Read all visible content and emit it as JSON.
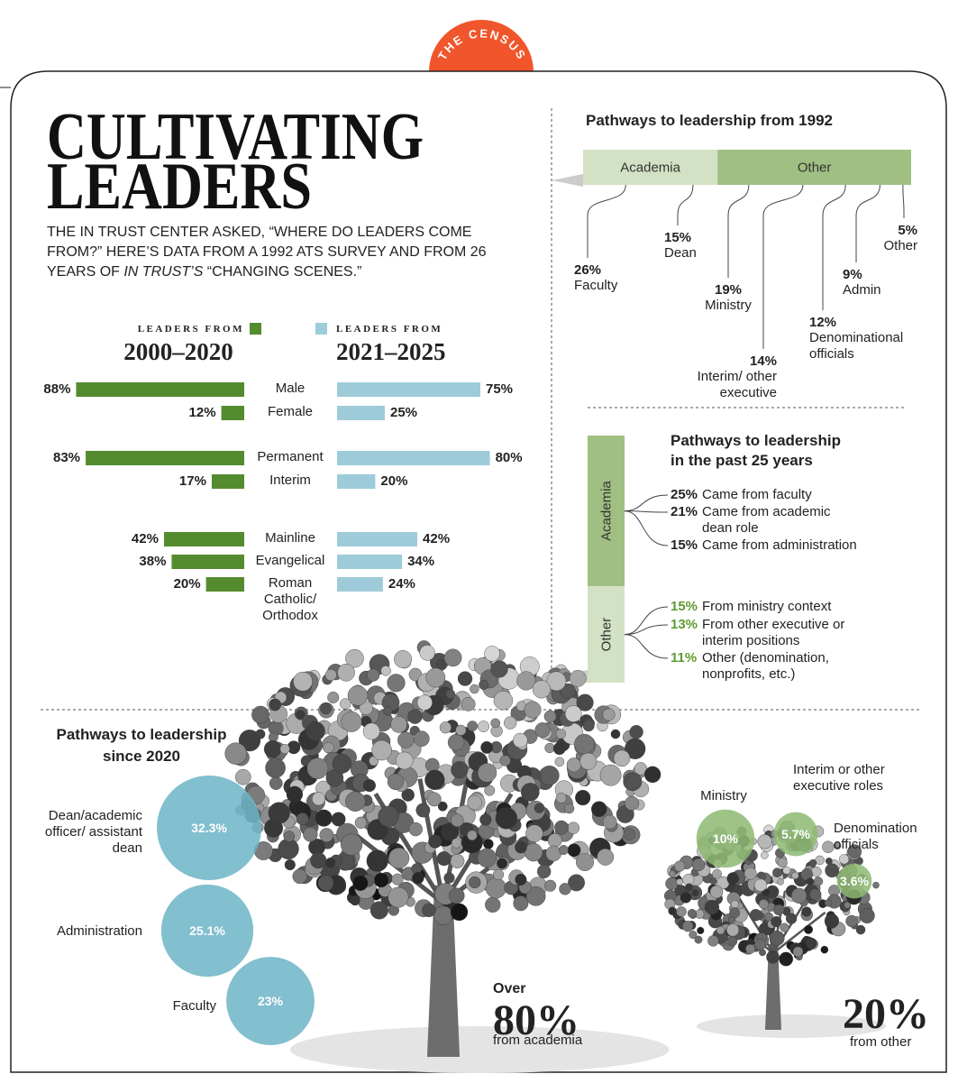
{
  "badge": "THE CENSUS",
  "header": {
    "title": [
      "CULTIVATING",
      "LEADERS"
    ],
    "intro": [
      "THE IN TRUST CENTER ASKED, “WHERE DO LEADERS COME FROM?” HERE’S DATA FROM A 1992 ATS SURVEY AND FROM 26 YEARS OF ",
      "IN TRUST’S",
      " “CHANGING SCENES.”"
    ]
  },
  "chart_data": [
    {
      "type": "butterfly-bar",
      "categories": [
        "Male",
        "Female",
        "Permanent",
        "Interim",
        "Mainline",
        "Evangelical",
        "Roman Catholic/ Orthodox"
      ],
      "series": [
        {
          "name": "LEADERS FROM",
          "period": "2000–2020",
          "color": "#548b2f",
          "values": [
            88,
            12,
            83,
            17,
            42,
            38,
            20
          ],
          "value_labels": [
            "88%",
            "12%",
            "83%",
            "17%",
            "42%",
            "38%",
            "20%"
          ]
        },
        {
          "name": "LEADERS FROM",
          "period": "2021–2025",
          "color": "#9ecbd9",
          "values": [
            75,
            25,
            80,
            20,
            42,
            34,
            24
          ],
          "value_labels": [
            "75%",
            "25%",
            "80%",
            "20%",
            "42%",
            "34%",
            "24%"
          ]
        }
      ]
    },
    {
      "type": "stacked-bar",
      "orientation": "horizontal",
      "title": "Pathways to leadership from 1992",
      "segments": [
        {
          "name": "Academia",
          "color": "#d3e2c4",
          "items": [
            {
              "name": "Faculty",
              "value": 26,
              "label": "26%"
            },
            {
              "name": "Dean",
              "value": 15,
              "label": "15%"
            }
          ]
        },
        {
          "name": "Other",
          "color": "#a0bf82",
          "items": [
            {
              "name": "Ministry",
              "value": 19,
              "label": "19%"
            },
            {
              "name": "Interim/ other executive",
              "value": 14,
              "label": "14%"
            },
            {
              "name": "Denominational officials",
              "value": 12,
              "label": "12%"
            },
            {
              "name": "Admin",
              "value": 9,
              "label": "9%"
            },
            {
              "name": "Other",
              "value": 5,
              "label": "5%"
            }
          ]
        }
      ]
    },
    {
      "type": "stacked-bar",
      "orientation": "vertical",
      "title": "Pathways to leadership in the past 25 years",
      "segments": [
        {
          "name": "Academia",
          "color": "#a0bf82",
          "label_color": "#222222",
          "items": [
            {
              "name": "Came from faculty",
              "value": 25,
              "label": "25%"
            },
            {
              "name": "Came from academic dean role",
              "value": 21,
              "label": "21%"
            },
            {
              "name": "Came from administration",
              "value": 15,
              "label": "15%"
            }
          ]
        },
        {
          "name": "Other",
          "color": "#d3e2c4",
          "label_color": "#5e9a32",
          "items": [
            {
              "name": "From ministry context",
              "value": 15,
              "label": "15%"
            },
            {
              "name": "From other executive or interim positions",
              "value": 13,
              "label": "13%"
            },
            {
              "name": "Other (denomination, nonprofits, etc.)",
              "value": 11,
              "label": "11%"
            }
          ]
        }
      ]
    },
    {
      "type": "bubble",
      "title": "Pathways to leadership since 2020",
      "groups": [
        {
          "prefix": "Over",
          "total": 80,
          "total_label": "80%",
          "name": "from academia",
          "color": "#6cb4c7",
          "items": [
            {
              "name": "Dean/academic officer/ assistant dean",
              "value": 32.3,
              "label": "32.3%"
            },
            {
              "name": "Administration",
              "value": 25.1,
              "label": "25.1%"
            },
            {
              "name": "Faculty",
              "value": 23,
              "label": "23%"
            }
          ]
        },
        {
          "total": 20,
          "total_label": "20%",
          "name": "from other",
          "color": "#8db872",
          "items": [
            {
              "name": "Ministry",
              "value": 10,
              "label": "10%"
            },
            {
              "name": "Interim or other executive roles",
              "value": 5.7,
              "label": "5.7%"
            },
            {
              "name": "Denomination officials",
              "value": 3.6,
              "label": "3.6%"
            }
          ]
        }
      ]
    }
  ]
}
